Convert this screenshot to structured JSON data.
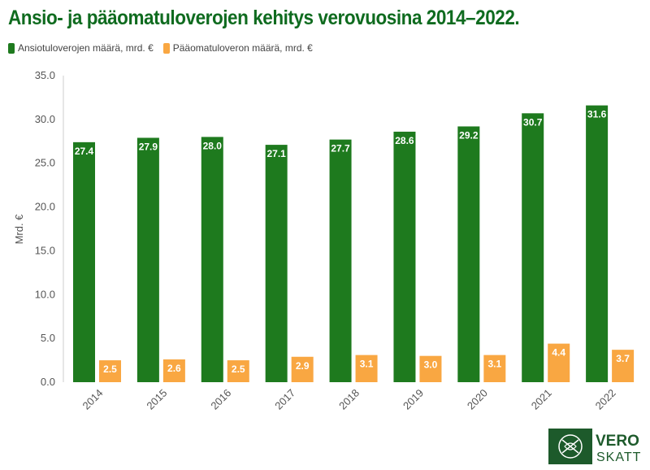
{
  "title": "Ansio- ja pääomatuloverojen kehitys verovuosina 2014–2022.",
  "logo": {
    "line1": "VERO",
    "line2": "SKATT"
  },
  "colors": {
    "series1": "#1e7a1e",
    "series2": "#f9a742",
    "title": "#0f6b1f",
    "logo": "#1d5a2b"
  },
  "chart_data": {
    "type": "bar",
    "title": "Ansio- ja pääomatuloverojen kehitys verovuosina 2014–2022.",
    "xlabel": "",
    "ylabel": "Mrd. €",
    "ylim": [
      0,
      35
    ],
    "yticks": [
      "0.0",
      "5.0",
      "10.0",
      "15.0",
      "20.0",
      "25.0",
      "30.0",
      "35.0"
    ],
    "grid": false,
    "legend": "top-left",
    "categories": [
      "2014",
      "2015",
      "2016",
      "2017",
      "2018",
      "2019",
      "2020",
      "2021",
      "2022"
    ],
    "series": [
      {
        "name": "Ansiotuloverojen määrä, mrd. €",
        "values": [
          27.4,
          27.9,
          28.0,
          27.1,
          27.7,
          28.6,
          29.2,
          30.7,
          31.6
        ],
        "labels": [
          "27.4",
          "27.9",
          "28.0",
          "27.1",
          "27.7",
          "28.6",
          "29.2",
          "30.7",
          "31.6"
        ]
      },
      {
        "name": "Pääomatuloveron määrä, mrd. €",
        "values": [
          2.5,
          2.6,
          2.5,
          2.9,
          3.1,
          3.0,
          3.1,
          4.4,
          3.7
        ],
        "labels": [
          "2.5",
          "2.6",
          "2.5",
          "2.9",
          "3.1",
          "3.0",
          "3.1",
          "4.4",
          "3.7"
        ]
      }
    ]
  }
}
